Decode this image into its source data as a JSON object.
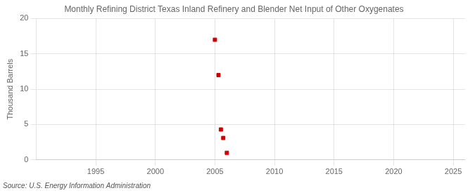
{
  "chart_data": {
    "type": "scatter",
    "title": "Monthly Refining District Texas Inland Refinery and Blender Net Input of Other Oxygenates",
    "y_label": "Thousand Barrels",
    "source": "Source: U.S. Energy Information Administration",
    "x": [
      2005.0,
      2005.3,
      2005.5,
      2005.7,
      2006.0
    ],
    "values": [
      17.0,
      12.0,
      4.3,
      3.1,
      1.0
    ],
    "color": "#cc0000",
    "marker": "square",
    "xlim": [
      1990,
      2026
    ],
    "ylim": [
      0,
      20
    ],
    "xticks": [
      1995,
      2000,
      2005,
      2010,
      2015,
      2020,
      2025
    ],
    "yticks": [
      0,
      5,
      10,
      15,
      20
    ],
    "grid": true
  }
}
